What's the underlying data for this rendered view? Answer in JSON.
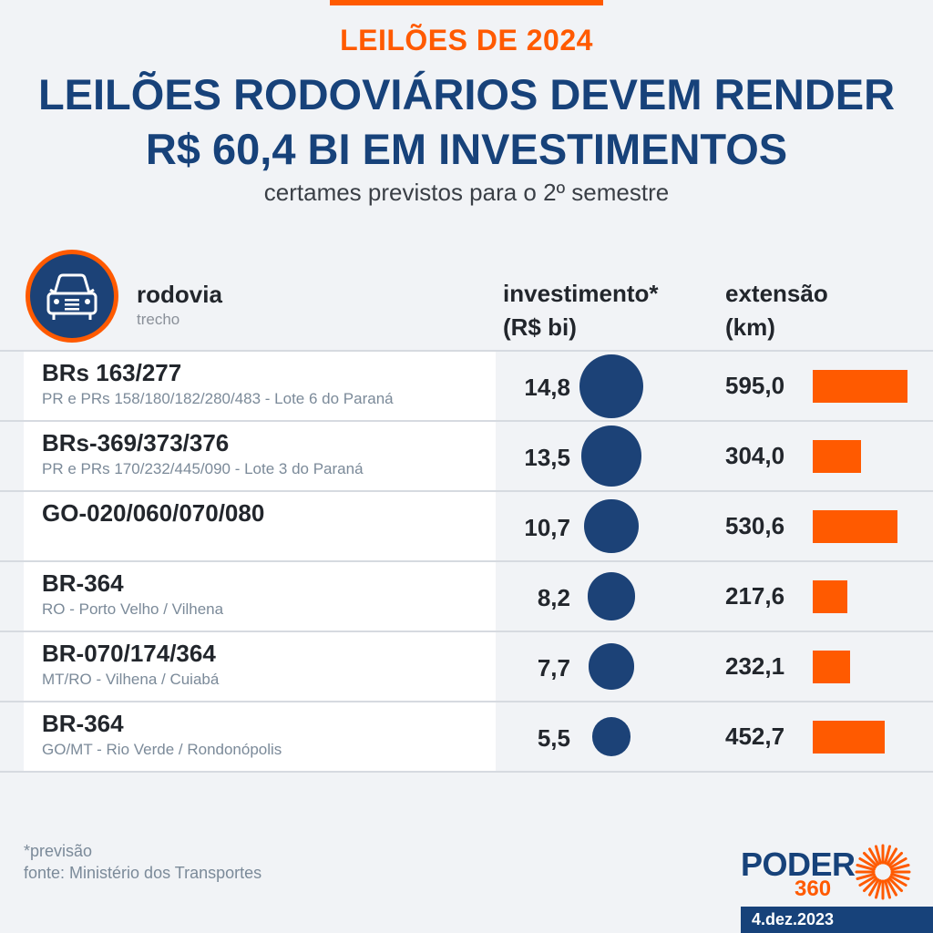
{
  "header": {
    "kicker": "LEILÕES DE 2024",
    "title_line1": "LEILÕES RODOVIÁRIOS DEVEM RENDER",
    "title_line2": "R$ 60,4 BI EM INVESTIMENTOS",
    "subtitle": "certames previstos para o 2º semestre"
  },
  "columns": {
    "rodovia": "rodovia",
    "trecho": "trecho",
    "investimento_line1": "investimento*",
    "investimento_line2": "(R$ bi)",
    "extensao_line1": "extensão",
    "extensao_line2": "(km)",
    "icon": "car-icon"
  },
  "chart_data": {
    "type": "table",
    "columns": [
      "rodovia",
      "trecho",
      "investimento* (R$ bi)",
      "extensão (km)"
    ],
    "rows": [
      {
        "rodovia": "BRs 163/277",
        "trecho": "PR e PRs 158/180/182/280/483 - Lote 6 do Paraná",
        "investimento": 14.8,
        "investimento_label": "14,8",
        "extensao": 595.0,
        "extensao_label": "595,0"
      },
      {
        "rodovia": "BRs-369/373/376",
        "trecho": "PR e PRs 170/232/445/090 - Lote 3 do Paraná",
        "investimento": 13.5,
        "investimento_label": "13,5",
        "extensao": 304.0,
        "extensao_label": "304,0"
      },
      {
        "rodovia": "GO-020/060/070/080",
        "trecho": "",
        "investimento": 10.7,
        "investimento_label": "10,7",
        "extensao": 530.6,
        "extensao_label": "530,6"
      },
      {
        "rodovia": "BR-364",
        "trecho": "RO - Porto Velho / Vilhena",
        "investimento": 8.2,
        "investimento_label": "8,2",
        "extensao": 217.6,
        "extensao_label": "217,6"
      },
      {
        "rodovia": "BR-070/174/364",
        "trecho": "MT/RO - Vilhena / Cuiabá",
        "investimento": 7.7,
        "investimento_label": "7,7",
        "extensao": 232.1,
        "extensao_label": "232,1"
      },
      {
        "rodovia": "BR-364",
        "trecho": "GO/MT - Rio Verde / Rondonópolis",
        "investimento": 5.5,
        "investimento_label": "5,5",
        "extensao": 452.7,
        "extensao_label": "452,7"
      }
    ],
    "bubble_color": "#1c4277",
    "bar_color": "#ff5a00"
  },
  "footer": {
    "note": "*previsão",
    "source": "fonte: Ministério dos Transportes",
    "logo_text": "PODER",
    "logo_number": "360",
    "date": "4.dez.2023"
  },
  "colors": {
    "accent": "#ff5a00",
    "brand": "#17427a",
    "background": "#f1f3f6"
  }
}
